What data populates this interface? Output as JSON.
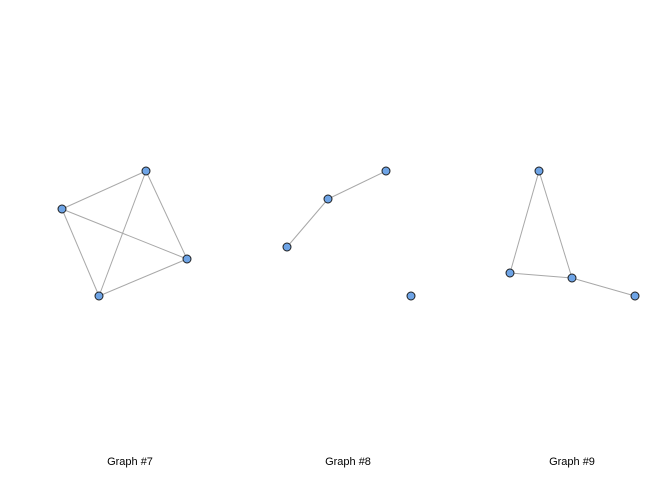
{
  "colors": {
    "background": "#ffffff",
    "edge": "#a8a8a8",
    "node_fill": "#6ea4e6",
    "node_stroke": "#1f1f1f",
    "caption_text": "#000000"
  },
  "graphs": [
    {
      "caption": "Graph #7",
      "node_count": 4,
      "edges": [
        [
          0,
          1
        ],
        [
          0,
          2
        ],
        [
          0,
          3
        ],
        [
          1,
          2
        ],
        [
          1,
          3
        ],
        [
          2,
          3
        ]
      ]
    },
    {
      "caption": "Graph #8",
      "node_count": 4,
      "edges": [
        [
          0,
          1
        ],
        [
          1,
          2
        ]
      ]
    },
    {
      "caption": "Graph #9",
      "node_count": 4,
      "edges": [
        [
          0,
          1
        ],
        [
          0,
          2
        ],
        [
          1,
          2
        ],
        [
          2,
          3
        ]
      ]
    }
  ]
}
